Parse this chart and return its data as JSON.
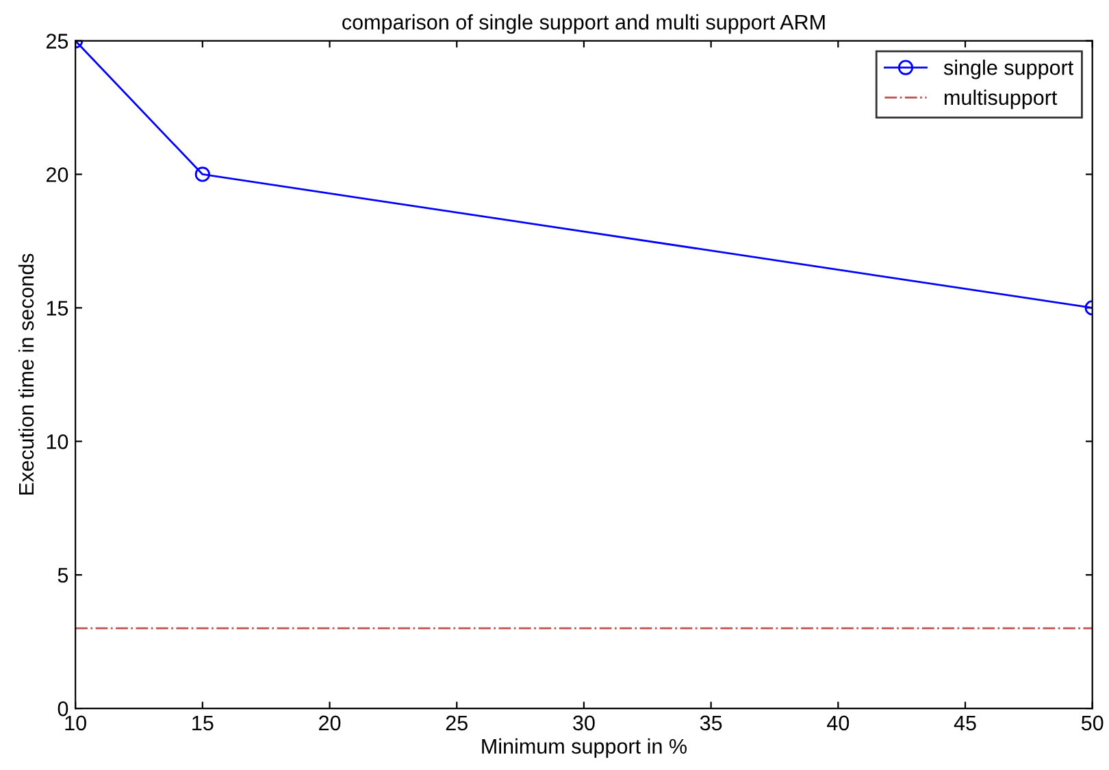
{
  "chart_data": {
    "type": "line",
    "title": "comparison of single support and multi support ARM",
    "xlabel": "Minimum support in %",
    "ylabel": "Execution time in seconds",
    "series": [
      {
        "name": "single support",
        "color": "#0000ff",
        "x": [
          10,
          15,
          50
        ],
        "values": [
          25,
          20,
          15
        ],
        "marker": "circle",
        "line_style": "solid"
      },
      {
        "name": "multisupport",
        "color": "#c0504d",
        "x": [
          10,
          50
        ],
        "values": [
          3,
          3
        ],
        "marker": "none",
        "line_style": "dashdot"
      }
    ],
    "xlim": [
      10,
      50
    ],
    "xticks": [
      10,
      15,
      20,
      25,
      30,
      35,
      40,
      45,
      50
    ],
    "ylim": [
      0,
      25
    ],
    "yticks": [
      0,
      5,
      10,
      15,
      20,
      25
    ],
    "grid": false,
    "legend": "top right"
  }
}
